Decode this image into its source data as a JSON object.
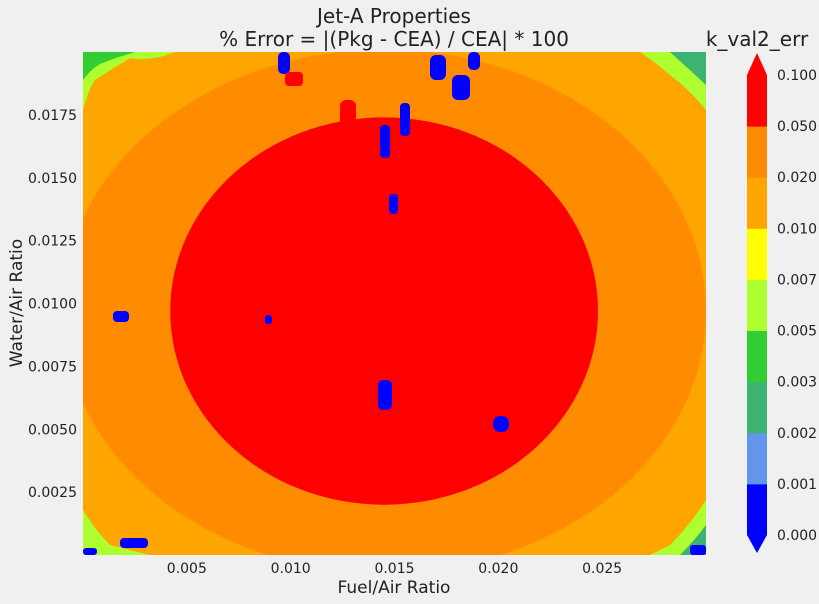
{
  "chart_data": {
    "type": "heatmap",
    "title": "Jet-A Properties",
    "subtitle": "% Error = |(Pkg - CEA) / CEA| * 100",
    "colorbar_title": "k_val2_err",
    "xlabel": "Fuel/Air Ratio",
    "ylabel": "Water/Air Ratio",
    "xlim": [
      0.0,
      0.03
    ],
    "ylim": [
      0.0,
      0.02
    ],
    "x_ticks": [
      "0.005",
      "0.010",
      "0.015",
      "0.020",
      "0.025"
    ],
    "x_tick_values": [
      0.005,
      0.01,
      0.015,
      0.02,
      0.025
    ],
    "y_ticks": [
      "0.0025",
      "0.0050",
      "0.0075",
      "0.0100",
      "0.0125",
      "0.0150",
      "0.0175"
    ],
    "y_tick_values": [
      0.0025,
      0.005,
      0.0075,
      0.01,
      0.0125,
      0.015,
      0.0175
    ],
    "grid": false,
    "colorbar": {
      "levels": [
        "0.000",
        "0.001",
        "0.002",
        "0.003",
        "0.005",
        "0.007",
        "0.010",
        "0.020",
        "0.050",
        "0.100"
      ],
      "colors": [
        "#0000ff",
        "#6495ed",
        "#3cb371",
        "#32cd32",
        "#adff2f",
        "#ffff00",
        "#ffa500",
        "#ff8c00",
        "#ff0000"
      ],
      "extend_low_color": "#0000ff",
      "extend_high_color": "#ff0000"
    },
    "regions": {
      "background_color": "#ffa500",
      "inner_ring_color": "#ff8c00",
      "center_color": "#ff0000",
      "center_x": 0.0145,
      "center_y": 0.0097,
      "inner_ring_radius_x": 0.0155,
      "inner_ring_radius_y": 0.0104,
      "center_radius_x": 0.0103,
      "center_radius_y": 0.0077
    }
  }
}
